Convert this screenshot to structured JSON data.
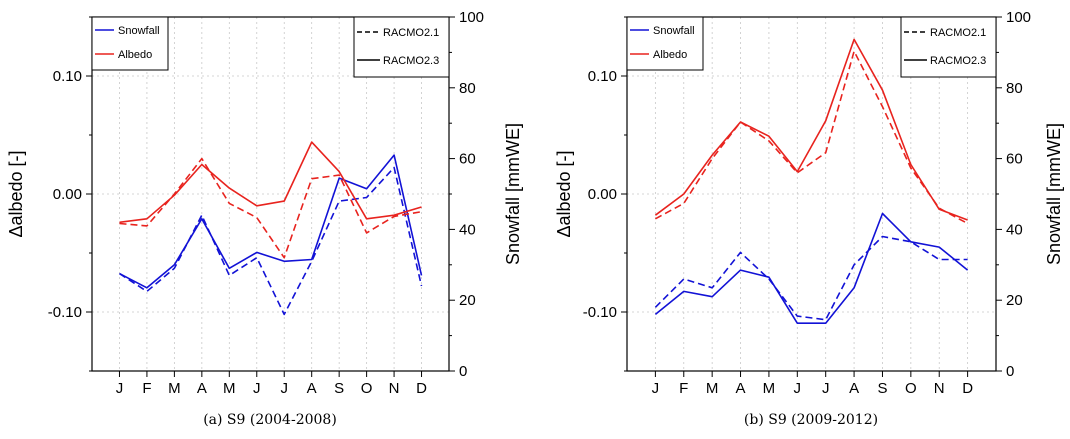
{
  "chart_data": [
    {
      "type": "line",
      "caption": "(a) S9 (2004-2008)",
      "categories": [
        "J",
        "F",
        "M",
        "A",
        "M",
        "J",
        "J",
        "A",
        "S",
        "O",
        "N",
        "D"
      ],
      "ylabel_left": "Δalbedo [-]",
      "ylabel_right": "Snowfall [mmWE]",
      "ylim_left": [
        -0.15,
        0.15
      ],
      "ylim_right": [
        0,
        100
      ],
      "yticks_left": [
        "-0.10",
        "0.00",
        "0.10"
      ],
      "yticks_right": [
        "0",
        "20",
        "40",
        "60",
        "80",
        "100"
      ],
      "grid": true,
      "series": [
        {
          "name": "RACMO2.3",
          "variable": "Snowfall",
          "axis": "right",
          "style": "solid",
          "color": "#1212d6",
          "values": [
            27.5,
            23.5,
            30,
            43,
            29,
            33.5,
            31,
            31.5,
            54.5,
            51.5,
            61,
            27
          ]
        },
        {
          "name": "RACMO2.1",
          "variable": "Snowfall",
          "axis": "right",
          "style": "dashed",
          "color": "#1212d6",
          "values": [
            27.5,
            22.5,
            29,
            44,
            27,
            32,
            16,
            31,
            48,
            49,
            57.5,
            24
          ]
        },
        {
          "name": "RACMO2.3",
          "variable": "Albedo",
          "axis": "left",
          "style": "solid",
          "color": "#e8231e",
          "values": [
            -0.024,
            -0.021,
            -0.001,
            0.025,
            0.005,
            -0.01,
            -0.006,
            0.044,
            0.019,
            -0.021,
            -0.018,
            -0.011
          ]
        },
        {
          "name": "RACMO2.1",
          "variable": "Albedo",
          "axis": "left",
          "style": "dashed",
          "color": "#e8231e",
          "values": [
            -0.025,
            -0.027,
            0.0,
            0.03,
            -0.008,
            -0.02,
            -0.054,
            0.013,
            0.016,
            -0.033,
            -0.019,
            -0.015
          ]
        }
      ],
      "legend_variables": [
        {
          "label": "Snowfall",
          "color": "#1212d6"
        },
        {
          "label": "Albedo",
          "color": "#e8231e"
        }
      ],
      "legend_models": [
        {
          "label": "RACMO2.1",
          "style": "dashed"
        },
        {
          "label": "RACMO2.3",
          "style": "solid"
        }
      ]
    },
    {
      "type": "line",
      "caption": "(b) S9 (2009-2012)",
      "categories": [
        "J",
        "F",
        "M",
        "A",
        "M",
        "J",
        "J",
        "A",
        "S",
        "O",
        "N",
        "D"
      ],
      "ylabel_left": "Δalbedo [-]",
      "ylabel_right": "Snowfall [mmWE]",
      "ylim_left": [
        -0.15,
        0.15
      ],
      "ylim_right": [
        0,
        100
      ],
      "yticks_left": [
        "-0.10",
        "0.00",
        "0.10"
      ],
      "yticks_right": [
        "0",
        "20",
        "40",
        "60",
        "80",
        "100"
      ],
      "grid": true,
      "series": [
        {
          "name": "RACMO2.3",
          "variable": "Snowfall",
          "axis": "right",
          "style": "solid",
          "color": "#1212d6",
          "values": [
            16,
            22.5,
            21,
            28.5,
            26.5,
            13.5,
            13.5,
            23.5,
            44.5,
            36.5,
            35,
            28.5
          ]
        },
        {
          "name": "RACMO2.1",
          "variable": "Snowfall",
          "axis": "right",
          "style": "dashed",
          "color": "#1212d6",
          "values": [
            18,
            26,
            23.5,
            33.5,
            26,
            15.5,
            14.5,
            30,
            38,
            36.5,
            31.5,
            31.5
          ]
        },
        {
          "name": "RACMO2.3",
          "variable": "Albedo",
          "axis": "left",
          "style": "solid",
          "color": "#e8231e",
          "values": [
            -0.018,
            0.0,
            0.033,
            0.061,
            0.049,
            0.019,
            0.062,
            0.131,
            0.088,
            0.025,
            -0.013,
            -0.022
          ]
        },
        {
          "name": "RACMO2.1",
          "variable": "Albedo",
          "axis": "left",
          "style": "dashed",
          "color": "#e8231e",
          "values": [
            -0.021,
            -0.008,
            0.03,
            0.061,
            0.045,
            0.018,
            0.035,
            0.121,
            0.074,
            0.022,
            -0.012,
            -0.025
          ]
        }
      ],
      "legend_variables": [
        {
          "label": "Snowfall",
          "color": "#1212d6"
        },
        {
          "label": "Albedo",
          "color": "#e8231e"
        }
      ],
      "legend_models": [
        {
          "label": "RACMO2.1",
          "style": "dashed"
        },
        {
          "label": "RACMO2.3",
          "style": "solid"
        }
      ]
    }
  ]
}
